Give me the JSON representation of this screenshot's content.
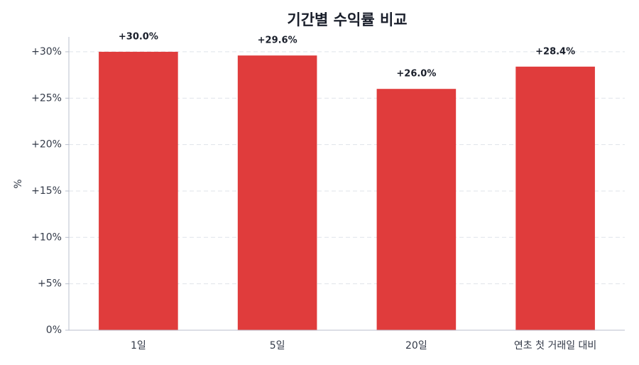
{
  "chart_data": {
    "type": "bar",
    "title": "기간별 수익률 비교",
    "y_label": "%",
    "categories": [
      "1일",
      "5일",
      "20일",
      "연초 첫 거래일 대비"
    ],
    "values": [
      30.0,
      29.6,
      26.0,
      28.4
    ],
    "value_labels": [
      "+30.0%",
      "+29.6%",
      "+26.0%",
      "+28.4%"
    ],
    "color": "#e03c3c",
    "ylim": [
      0,
      31.6
    ],
    "yticks": [
      {
        "value": 0,
        "label": "0%"
      },
      {
        "value": 5,
        "label": "+5%"
      },
      {
        "value": 10,
        "label": "+10%"
      },
      {
        "value": 15,
        "label": "+15%"
      },
      {
        "value": 20,
        "label": "+20%"
      },
      {
        "value": 25,
        "label": "+25%"
      },
      {
        "value": 30,
        "label": "+30%"
      }
    ],
    "grid": true
  }
}
